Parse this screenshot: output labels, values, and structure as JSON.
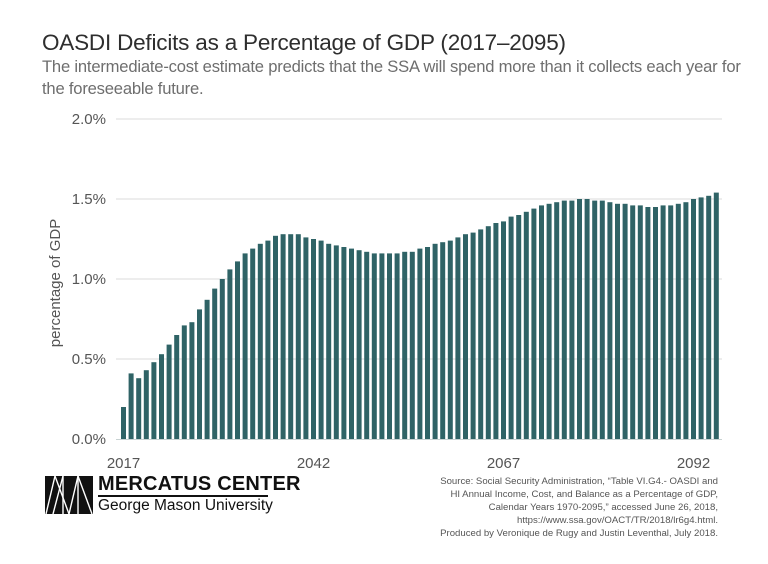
{
  "header": {
    "title": "OASDI Deficits as a Percentage of GDP (2017–2095)",
    "subtitle": "The intermediate-cost estimate predicts that the SSA will spend more than it collects each year for the foreseeable future."
  },
  "colors": {
    "bar": "#2f6366",
    "grid": "#e2e2e2",
    "text": "#555555"
  },
  "chart_data": {
    "type": "bar",
    "title": "OASDI Deficits as a Percentage of GDP (2017–2095)",
    "xlabel": "",
    "ylabel": "percentage of GDP",
    "ylim": [
      0,
      2.0
    ],
    "grid": true,
    "y_ticks": [
      "0.0%",
      "0.5%",
      "1.0%",
      "1.5%",
      "2.0%"
    ],
    "y_tick_values": [
      0,
      0.5,
      1.0,
      1.5,
      2.0
    ],
    "x_ticks": [
      "2017",
      "2042",
      "2067",
      "2092"
    ],
    "x_start": 2017,
    "x_end": 2095,
    "series": [
      {
        "name": "OASDI deficit (% of GDP)",
        "values": [
          0.2,
          0.41,
          0.38,
          0.43,
          0.48,
          0.53,
          0.59,
          0.65,
          0.71,
          0.73,
          0.81,
          0.87,
          0.94,
          1.0,
          1.06,
          1.11,
          1.16,
          1.19,
          1.22,
          1.24,
          1.27,
          1.28,
          1.28,
          1.28,
          1.26,
          1.25,
          1.24,
          1.22,
          1.21,
          1.2,
          1.19,
          1.18,
          1.17,
          1.16,
          1.16,
          1.16,
          1.16,
          1.17,
          1.17,
          1.19,
          1.2,
          1.22,
          1.23,
          1.24,
          1.26,
          1.28,
          1.29,
          1.31,
          1.33,
          1.35,
          1.36,
          1.39,
          1.4,
          1.42,
          1.44,
          1.46,
          1.47,
          1.48,
          1.49,
          1.49,
          1.5,
          1.5,
          1.49,
          1.49,
          1.48,
          1.47,
          1.47,
          1.46,
          1.46,
          1.45,
          1.45,
          1.46,
          1.46,
          1.47,
          1.48,
          1.5,
          1.51,
          1.52,
          1.54
        ]
      }
    ]
  },
  "footer": {
    "logo_top": "MERCATUS CENTER",
    "logo_bottom": "George Mason University",
    "source_lines": [
      "Source: Social Security Administration, “Table VI.G4.- OASDI and",
      "HI Annual Income, Cost, and Balance as a Percentage of GDP,",
      "Calendar Years 1970-2095,” accessed June 26, 2018,",
      "https://www.ssa.gov/OACT/TR/2018/lr6g4.html.",
      "Produced by Veronique de Rugy and Justin Leventhal, July 2018."
    ]
  }
}
